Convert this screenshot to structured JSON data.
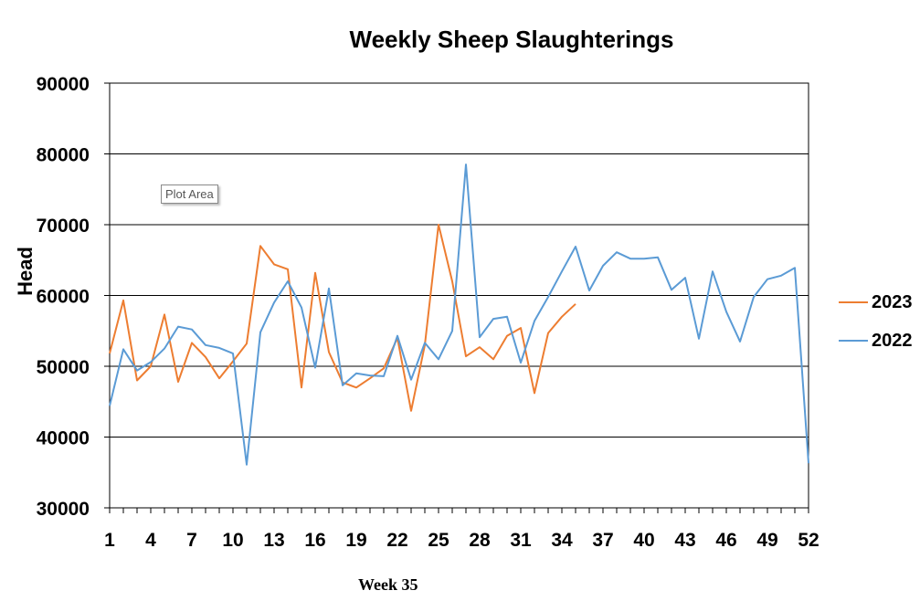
{
  "chart_data": {
    "type": "line",
    "title": "Weekly Sheep Slaughterings",
    "ylabel": "Head",
    "xlabel": "",
    "footer": "Week 35",
    "tooltip": "Plot Area",
    "ylim": [
      30000,
      90000
    ],
    "yticks": [
      30000,
      40000,
      50000,
      60000,
      70000,
      80000,
      90000
    ],
    "xlim": [
      1,
      52
    ],
    "xticks": [
      1,
      4,
      7,
      10,
      13,
      16,
      19,
      22,
      25,
      28,
      31,
      34,
      37,
      40,
      43,
      46,
      49,
      52
    ],
    "grid": "horizontal",
    "legend_position": "right",
    "series": [
      {
        "name": "2023",
        "color": "#ED7D31",
        "x": [
          1,
          2,
          3,
          4,
          5,
          6,
          7,
          8,
          9,
          10,
          11,
          12,
          13,
          14,
          15,
          16,
          17,
          18,
          19,
          20,
          21,
          22,
          23,
          24,
          25,
          26,
          27,
          28,
          29,
          30,
          31,
          32,
          33,
          34,
          35
        ],
        "values": [
          51800,
          59300,
          48000,
          50000,
          57300,
          47800,
          53300,
          51300,
          48300,
          50700,
          53200,
          67000,
          64400,
          63700,
          47000,
          63200,
          52000,
          47700,
          47000,
          48300,
          49700,
          54000,
          43700,
          53000,
          70000,
          62000,
          51400,
          52700,
          51000,
          54300,
          55400,
          46200,
          54700,
          57000,
          58800
        ]
      },
      {
        "name": "2022",
        "color": "#5B9BD5",
        "x": [
          1,
          2,
          3,
          4,
          5,
          6,
          7,
          8,
          9,
          10,
          11,
          12,
          13,
          14,
          15,
          16,
          17,
          18,
          19,
          20,
          21,
          22,
          23,
          24,
          25,
          26,
          27,
          28,
          29,
          30,
          31,
          32,
          33,
          34,
          35,
          36,
          37,
          38,
          39,
          40,
          41,
          42,
          43,
          44,
          45,
          46,
          47,
          48,
          49,
          50,
          51,
          52
        ],
        "values": [
          44400,
          52400,
          49400,
          50600,
          52500,
          55600,
          55200,
          53000,
          52600,
          51800,
          36100,
          54800,
          59000,
          62000,
          58300,
          49800,
          61000,
          47300,
          49000,
          48700,
          48600,
          54300,
          48100,
          53300,
          51000,
          55000,
          78500,
          54100,
          56700,
          57000,
          50500,
          56400,
          59800,
          63400,
          66900,
          60700,
          64200,
          66100,
          65200,
          65200,
          65400,
          60800,
          62500,
          53900,
          63400,
          57700,
          53500,
          59800,
          62300,
          62800,
          63900,
          36300
        ]
      }
    ]
  }
}
